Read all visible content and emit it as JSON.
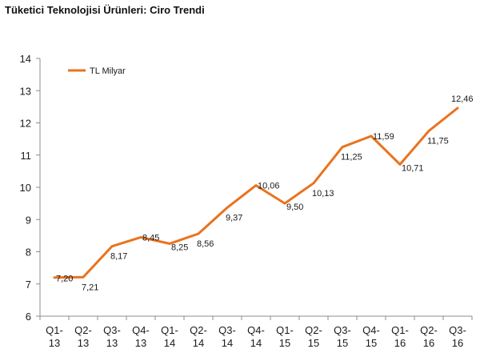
{
  "title": "Tüketici Teknolojisi Ürünleri: Ciro Trendi",
  "colors": {
    "line": "#E9731E",
    "axis": "#8c8c8c"
  },
  "chart_data": {
    "type": "line",
    "title": "Tüketici Teknolojisi Ürünleri: Ciro Trendi",
    "xlabel": "",
    "ylabel": "",
    "ylim": [
      6,
      14
    ],
    "yticks": [
      6,
      7,
      8,
      9,
      10,
      11,
      12,
      13,
      14
    ],
    "grid": false,
    "legend": "top-left",
    "categories": [
      [
        "Q1-",
        "13"
      ],
      [
        "Q2-",
        "13"
      ],
      [
        "Q3-",
        "13"
      ],
      [
        "Q4-",
        "13"
      ],
      [
        "Q1-",
        "14"
      ],
      [
        "Q2-",
        "14"
      ],
      [
        "Q3-",
        "14"
      ],
      [
        "Q4-",
        "14"
      ],
      [
        "Q1-",
        "15"
      ],
      [
        "Q2-",
        "15"
      ],
      [
        "Q3-",
        "15"
      ],
      [
        "Q4-",
        "15"
      ],
      [
        "Q1-",
        "16"
      ],
      [
        "Q2-",
        "16"
      ],
      [
        "Q3-",
        "16"
      ]
    ],
    "series": [
      {
        "name": "TL Milyar",
        "values": [
          7.2,
          7.21,
          8.17,
          8.45,
          8.25,
          8.56,
          9.37,
          10.06,
          9.5,
          10.13,
          11.25,
          11.59,
          10.71,
          11.75,
          12.46
        ],
        "labels": [
          "7,20",
          "7,21",
          "8,17",
          "8,45",
          "8,25",
          "8,56",
          "9,37",
          "10,06",
          "9,50",
          "10,13",
          "11,25",
          "11,59",
          "10,71",
          "11,75",
          "12,46"
        ]
      }
    ]
  }
}
